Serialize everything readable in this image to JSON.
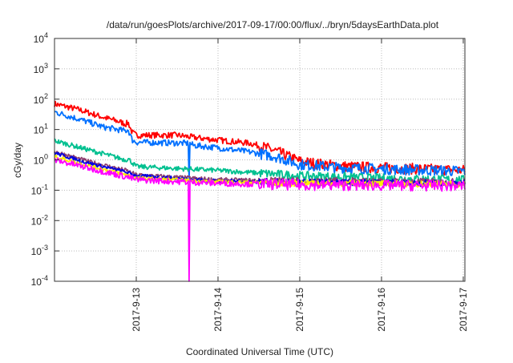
{
  "chart_data": {
    "type": "line",
    "title": "/data/run/goesPlots/archive/2017-09-17/00:00/flux/../bryn/5daysEarthData.plot",
    "xlabel": "Coordinated Universal Time (UTC)",
    "ylabel": "cGy/day",
    "yscale": "log",
    "ylim": [
      0.0001,
      10000
    ],
    "xlim_days_from_2017_09_12": [
      0,
      5.02
    ],
    "grid": true,
    "legend": "none",
    "y_ticks": [
      {
        "base": "10",
        "exp": "4",
        "value": 10000
      },
      {
        "base": "10",
        "exp": "3",
        "value": 1000
      },
      {
        "base": "10",
        "exp": "2",
        "value": 100
      },
      {
        "base": "10",
        "exp": "1",
        "value": 10
      },
      {
        "base": "10",
        "exp": "0",
        "value": 1
      },
      {
        "base": "10",
        "exp": "-1",
        "value": 0.1
      },
      {
        "base": "10",
        "exp": "-2",
        "value": 0.01
      },
      {
        "base": "10",
        "exp": "-3",
        "value": 0.001
      },
      {
        "base": "10",
        "exp": "-4",
        "value": 0.0001
      }
    ],
    "x_ticks": [
      {
        "label": "2017-9-13",
        "day": 1
      },
      {
        "label": "2017-9-14",
        "day": 2
      },
      {
        "label": "2017-9-15",
        "day": 3
      },
      {
        "label": "2017-9-16",
        "day": 4
      },
      {
        "label": "2017-9-17",
        "day": 5
      }
    ],
    "series": [
      {
        "name": "red",
        "color": "#ff0000",
        "noise": 0.1,
        "points": [
          [
            0,
            70
          ],
          [
            0.3,
            45
          ],
          [
            0.6,
            25
          ],
          [
            0.8,
            18
          ],
          [
            0.87,
            15
          ],
          [
            0.9,
            17
          ],
          [
            0.95,
            8
          ],
          [
            1.0,
            6.5
          ],
          [
            1.5,
            6.5
          ],
          [
            1.7,
            5.5
          ],
          [
            2.0,
            4.5
          ],
          [
            2.4,
            3.5
          ],
          [
            2.7,
            2.0
          ],
          [
            3.0,
            0.9
          ],
          [
            3.3,
            0.7
          ],
          [
            3.6,
            0.6
          ],
          [
            4.0,
            0.55
          ],
          [
            5.02,
            0.45
          ]
        ]
      },
      {
        "name": "blue",
        "color": "#0070ff",
        "noise": 0.1,
        "points": [
          [
            0,
            38
          ],
          [
            0.3,
            22
          ],
          [
            0.6,
            12
          ],
          [
            0.87,
            9
          ],
          [
            0.9,
            10
          ],
          [
            0.95,
            4.5
          ],
          [
            1.0,
            3.8
          ],
          [
            1.5,
            3.6
          ],
          [
            1.65,
            3.5
          ],
          [
            1.7,
            3.0
          ],
          [
            2.0,
            2.5
          ],
          [
            2.4,
            1.8
          ],
          [
            2.7,
            1.3
          ],
          [
            3.0,
            0.7
          ],
          [
            3.5,
            0.55
          ],
          [
            4.0,
            0.5
          ],
          [
            5.02,
            0.42
          ]
        ],
        "dropout": {
          "day": 1.65,
          "value": 0.2
        }
      },
      {
        "name": "teal",
        "color": "#00c090",
        "noise": 0.08,
        "points": [
          [
            0,
            4.3
          ],
          [
            0.4,
            2.2
          ],
          [
            0.87,
            1.0
          ],
          [
            0.9,
            1.1
          ],
          [
            1.0,
            0.6
          ],
          [
            2.0,
            0.45
          ],
          [
            3.0,
            0.3
          ],
          [
            4.0,
            0.25
          ],
          [
            5.02,
            0.22
          ]
        ]
      },
      {
        "name": "purple",
        "color": "#904070",
        "noise": 0.07,
        "points": [
          [
            0,
            1.9
          ],
          [
            0.4,
            0.9
          ],
          [
            0.87,
            0.45
          ],
          [
            1.0,
            0.32
          ],
          [
            2.0,
            0.22
          ],
          [
            3.0,
            0.2
          ],
          [
            5.02,
            0.18
          ]
        ]
      },
      {
        "name": "dark-blue",
        "color": "#0000e0",
        "noise": 0.06,
        "points": [
          [
            0,
            1.7
          ],
          [
            0.4,
            0.8
          ],
          [
            0.87,
            0.4
          ],
          [
            1.0,
            0.3
          ],
          [
            2.0,
            0.2
          ],
          [
            3.0,
            0.18
          ],
          [
            5.02,
            0.17
          ]
        ]
      },
      {
        "name": "yellow",
        "color": "#ffee00",
        "noise": 0.06,
        "points": [
          [
            0,
            1.3
          ],
          [
            0.4,
            0.65
          ],
          [
            0.87,
            0.33
          ],
          [
            1.0,
            0.25
          ],
          [
            2.0,
            0.19
          ],
          [
            3.0,
            0.17
          ],
          [
            5.02,
            0.16
          ]
        ]
      },
      {
        "name": "magenta",
        "color": "#ff00ff",
        "noise": 0.1,
        "points": [
          [
            0,
            1.0
          ],
          [
            0.4,
            0.55
          ],
          [
            0.87,
            0.28
          ],
          [
            1.0,
            0.22
          ],
          [
            2.0,
            0.17
          ],
          [
            3.0,
            0.15
          ],
          [
            5.02,
            0.14
          ]
        ],
        "dropout": {
          "day": 1.65,
          "value": 0.0001
        }
      }
    ]
  }
}
